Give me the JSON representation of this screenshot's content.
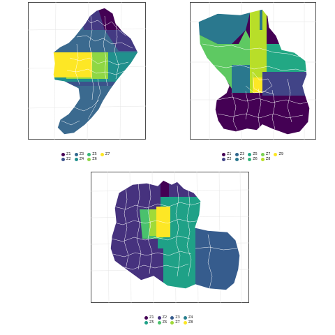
{
  "maps": [
    {
      "id": "map1",
      "legend_rows": [
        [
          {
            "label": "Z1",
            "color": "#440154"
          },
          {
            "label": "Z3",
            "color": "#30688e"
          },
          {
            "label": "Z5",
            "color": "#35b779"
          },
          {
            "label": "Z7",
            "color": "#fde725"
          }
        ],
        [
          {
            "label": "Z2",
            "color": "#3b528b"
          },
          {
            "label": "Z4",
            "color": "#21908d"
          },
          {
            "label": "Z6",
            "color": "#8fd744"
          }
        ]
      ]
    },
    {
      "id": "map2",
      "legend_rows": [
        [
          {
            "label": "Z1",
            "color": "#440154"
          },
          {
            "label": "Z3",
            "color": "#2a788e"
          },
          {
            "label": "Z5",
            "color": "#22a884"
          },
          {
            "label": "Z7",
            "color": "#7ad151"
          },
          {
            "label": "Z9",
            "color": "#fde725"
          }
        ],
        [
          {
            "label": "Z2",
            "color": "#414487"
          },
          {
            "label": "Z4",
            "color": "#2a788e"
          },
          {
            "label": "Z6",
            "color": "#22a884"
          },
          {
            "label": "Z8",
            "color": "#b8de29"
          }
        ]
      ]
    },
    {
      "id": "map3",
      "legend_rows": [
        [
          {
            "label": "Z1",
            "color": "#440154"
          },
          {
            "label": "Z2",
            "color": "#46327e"
          },
          {
            "label": "Z3",
            "color": "#365c8d"
          },
          {
            "label": "Z4",
            "color": "#277f8e"
          }
        ],
        [
          {
            "label": "Z5",
            "color": "#1fa187"
          },
          {
            "label": "Z6",
            "color": "#4ac16d"
          },
          {
            "label": "Z7",
            "color": "#a0da39"
          },
          {
            "label": "Z8",
            "color": "#fde725"
          }
        ]
      ]
    }
  ]
}
